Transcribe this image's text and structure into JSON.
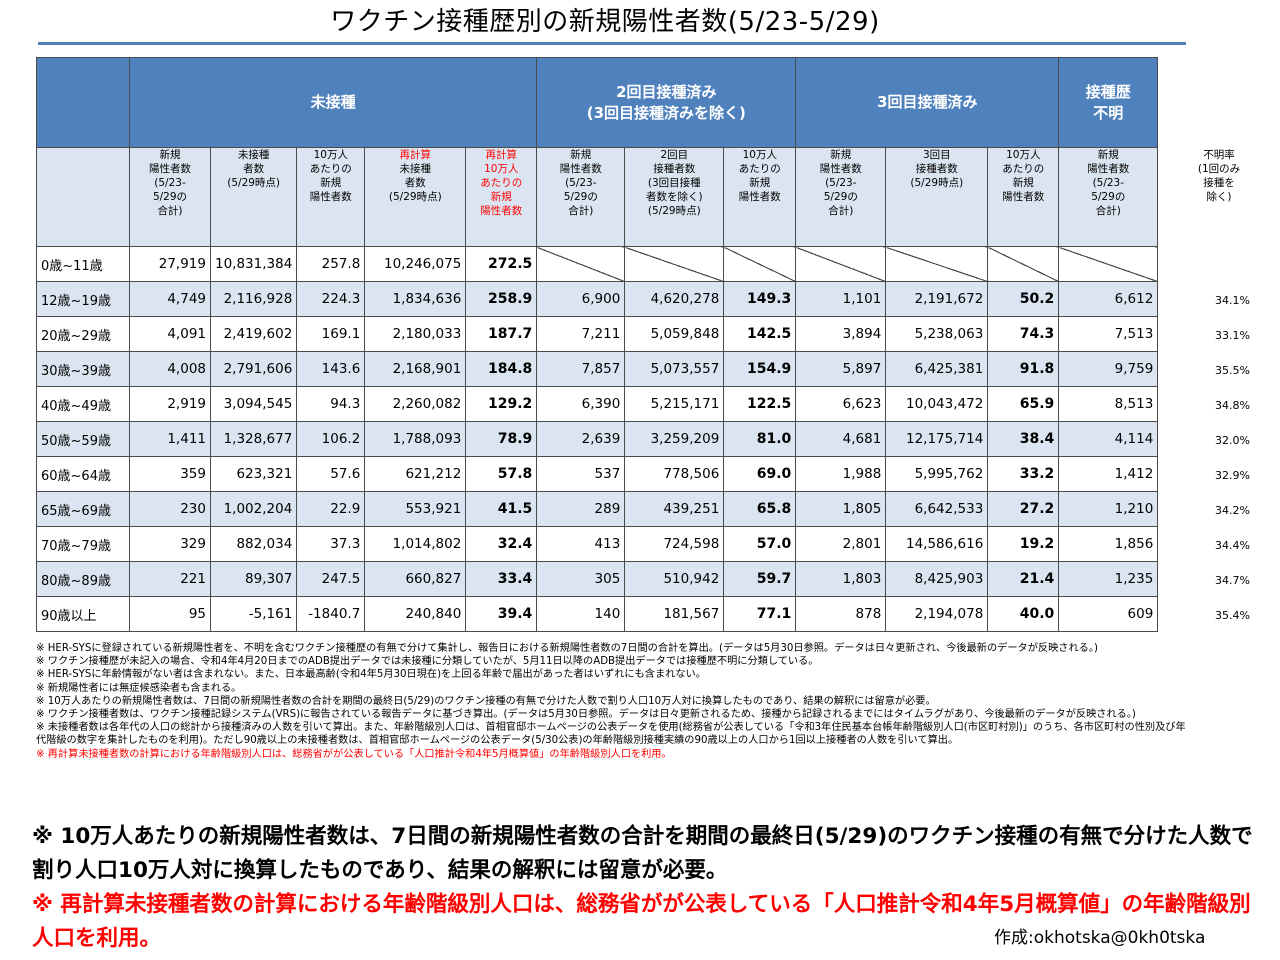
{
  "title": "ワクチン接種歴別の新規陽性者数(5/23-5/29)",
  "groups": {
    "unvaccinated": "未接種",
    "dose2_line1": "2回目接種済み",
    "dose2_line2": "(3回目接種済みを除く)",
    "dose3": "3回目接種済み",
    "unknown_line1": "接種歴",
    "unknown_line2": "不明"
  },
  "columns": {
    "u_cases": [
      "新規",
      "陽性者数",
      "(5/23-",
      "5/29の",
      "合計)"
    ],
    "u_pop": [
      "未接種",
      "者数",
      "(5/29時点)"
    ],
    "u_rate": [
      "10万人",
      "あたりの",
      "新規",
      "陽性者数"
    ],
    "u_recalc_pop_red": "再計算",
    "u_recalc_pop": [
      "未接種",
      "者数",
      "(5/29時点)"
    ],
    "u_recalc_rate_red": "再計算",
    "u_recalc_rate": [
      "10万人",
      "あたりの",
      "新規",
      "陽性者数"
    ],
    "d2_cases": [
      "新規",
      "陽性者数",
      "(5/23-",
      "5/29の",
      "合計)"
    ],
    "d2_pop": [
      "2回目",
      "接種者数",
      "(3回目接種",
      "者数を除く)",
      "(5/29時点)"
    ],
    "d2_rate": [
      "10万人",
      "あたりの",
      "新規",
      "陽性者数"
    ],
    "d3_cases": [
      "新規",
      "陽性者数",
      "(5/23-",
      "5/29の",
      "合計)"
    ],
    "d3_pop": [
      "3回目",
      "接種者数",
      "(5/29時点)"
    ],
    "d3_rate": [
      "10万人",
      "あたりの",
      "新規",
      "陽性者数"
    ],
    "unk_cases": [
      "新規",
      "陽性者数",
      "(5/23-",
      "5/29の",
      "合計)"
    ]
  },
  "unknown_rate_header": [
    "不明率",
    "(1回のみ",
    "接種を",
    "除く)"
  ],
  "rows": [
    {
      "age": "0歳~11歳",
      "u_cases": "27,919",
      "u_pop": "10,831,384",
      "u_rate": "257.8",
      "u_rpop": "10,246,075",
      "u_rrate": "272.5",
      "d2_cases": "",
      "d2_pop": "",
      "d2_rate": "",
      "d3_cases": "",
      "d3_pop": "",
      "d3_rate": "",
      "unk": "",
      "unk_rate": ""
    },
    {
      "age": "12歳~19歳",
      "u_cases": "4,749",
      "u_pop": "2,116,928",
      "u_rate": "224.3",
      "u_rpop": "1,834,636",
      "u_rrate": "258.9",
      "d2_cases": "6,900",
      "d2_pop": "4,620,278",
      "d2_rate": "149.3",
      "d3_cases": "1,101",
      "d3_pop": "2,191,672",
      "d3_rate": "50.2",
      "unk": "6,612",
      "unk_rate": "34.1%"
    },
    {
      "age": "20歳~29歳",
      "u_cases": "4,091",
      "u_pop": "2,419,602",
      "u_rate": "169.1",
      "u_rpop": "2,180,033",
      "u_rrate": "187.7",
      "d2_cases": "7,211",
      "d2_pop": "5,059,848",
      "d2_rate": "142.5",
      "d3_cases": "3,894",
      "d3_pop": "5,238,063",
      "d3_rate": "74.3",
      "unk": "7,513",
      "unk_rate": "33.1%"
    },
    {
      "age": "30歳~39歳",
      "u_cases": "4,008",
      "u_pop": "2,791,606",
      "u_rate": "143.6",
      "u_rpop": "2,168,901",
      "u_rrate": "184.8",
      "d2_cases": "7,857",
      "d2_pop": "5,073,557",
      "d2_rate": "154.9",
      "d3_cases": "5,897",
      "d3_pop": "6,425,381",
      "d3_rate": "91.8",
      "unk": "9,759",
      "unk_rate": "35.5%"
    },
    {
      "age": "40歳~49歳",
      "u_cases": "2,919",
      "u_pop": "3,094,545",
      "u_rate": "94.3",
      "u_rpop": "2,260,082",
      "u_rrate": "129.2",
      "d2_cases": "6,390",
      "d2_pop": "5,215,171",
      "d2_rate": "122.5",
      "d3_cases": "6,623",
      "d3_pop": "10,043,472",
      "d3_rate": "65.9",
      "unk": "8,513",
      "unk_rate": "34.8%"
    },
    {
      "age": "50歳~59歳",
      "u_cases": "1,411",
      "u_pop": "1,328,677",
      "u_rate": "106.2",
      "u_rpop": "1,788,093",
      "u_rrate": "78.9",
      "d2_cases": "2,639",
      "d2_pop": "3,259,209",
      "d2_rate": "81.0",
      "d3_cases": "4,681",
      "d3_pop": "12,175,714",
      "d3_rate": "38.4",
      "unk": "4,114",
      "unk_rate": "32.0%"
    },
    {
      "age": "60歳~64歳",
      "u_cases": "359",
      "u_pop": "623,321",
      "u_rate": "57.6",
      "u_rpop": "621,212",
      "u_rrate": "57.8",
      "d2_cases": "537",
      "d2_pop": "778,506",
      "d2_rate": "69.0",
      "d3_cases": "1,988",
      "d3_pop": "5,995,762",
      "d3_rate": "33.2",
      "unk": "1,412",
      "unk_rate": "32.9%"
    },
    {
      "age": "65歳~69歳",
      "u_cases": "230",
      "u_pop": "1,002,204",
      "u_rate": "22.9",
      "u_rpop": "553,921",
      "u_rrate": "41.5",
      "d2_cases": "289",
      "d2_pop": "439,251",
      "d2_rate": "65.8",
      "d3_cases": "1,805",
      "d3_pop": "6,642,533",
      "d3_rate": "27.2",
      "unk": "1,210",
      "unk_rate": "34.2%"
    },
    {
      "age": "70歳~79歳",
      "u_cases": "329",
      "u_pop": "882,034",
      "u_rate": "37.3",
      "u_rpop": "1,014,802",
      "u_rrate": "32.4",
      "d2_cases": "413",
      "d2_pop": "724,598",
      "d2_rate": "57.0",
      "d3_cases": "2,801",
      "d3_pop": "14,586,616",
      "d3_rate": "19.2",
      "unk": "1,856",
      "unk_rate": "34.4%"
    },
    {
      "age": "80歳~89歳",
      "u_cases": "221",
      "u_pop": "89,307",
      "u_rate": "247.5",
      "u_rpop": "660,827",
      "u_rrate": "33.4",
      "d2_cases": "305",
      "d2_pop": "510,942",
      "d2_rate": "59.7",
      "d3_cases": "1,803",
      "d3_pop": "8,425,903",
      "d3_rate": "21.4",
      "unk": "1,235",
      "unk_rate": "34.7%"
    },
    {
      "age": "90歳以上",
      "u_cases": "95",
      "u_pop": "-5,161",
      "u_rate": "-1840.7",
      "u_rpop": "240,840",
      "u_rrate": "39.4",
      "d2_cases": "140",
      "d2_pop": "181,567",
      "d2_rate": "77.1",
      "d3_cases": "878",
      "d3_pop": "2,194,078",
      "d3_rate": "40.0",
      "unk": "609",
      "unk_rate": "35.4%"
    }
  ],
  "notes": [
    "※ HER-SYSに登録されている新規陽性者を、不明を含むワクチン接種歴の有無で分けて集計し、報告日における新規陽性者数の7日間の合計を算出。(データは5月30日参照。データは日々更新され、今後最新のデータが反映される。)",
    "※ ワクチン接種歴が未記入の場合、令和4年4月20日までのADB提出データでは未接種に分類していたが、5月11日以降のADB提出データでは接種歴不明に分類している。",
    "※ HER-SYSに年齢情報がない者は含まれない。また、日本最高齢(令和4年5月30日現在)を上回る年齢で届出があった者はいずれにも含まれない。",
    "※ 新規陽性者には無症候感染者も含まれる。",
    "※ 10万人あたりの新規陽性者数は、7日間の新規陽性者数の合計を期間の最終日(5/29)のワクチン接種の有無で分けた人数で割り人口10万人対に換算したものであり、結果の解釈には留意が必要。",
    "※ ワクチン接種者数は、ワクチン接種記録システム(VRS)に報告されている報告データに基づき算出。(データは5月30日参照。データは日々更新されるため、接種から記録されるまでにはタイムラグがあり、今後最新のデータが反映される。)",
    "※ 未接種者数は各年代の人口の総計から接種済みの人数を引いて算出。また、年齢階級別人口は、首相官邸ホームページの公表データを使用(総務省が公表している「令和3年住民基本台帳年齢階級別人口(市区町村別)」のうち、各市区町村の性別及び年代階級の数字を集計したものを利用)。ただし90歳以上の未接種者数は、首相官邸ホームページの公表データ(5/30公表)の年齢階級別接種実績の90歳以上の人口から1回以上接種者の人数を引いて算出。"
  ],
  "note_red": "※ 再計算未接種者数の計算における年齢階級別人口は、総務省がが公表している「人口推計令和4年5月概算値」の年齢階級別人口を利用。",
  "big_note_1": "※ 10万人あたりの新規陽性者数は、7日間の新規陽性者数の合計を期間の最終日(5/29)のワクチン接種の有無で分けた人数で割り人口10万人対に換算したものであり、結果の解釈には留意が必要。",
  "big_note_2": "※ 再計算未接種者数の計算における年齢階級別人口は、総務省がが公表している「人口推計令和4年5月概算値」の年齢階級別人口を利用。",
  "credit": "作成:okhotska@0kh0tska",
  "colors": {
    "header_blue": "#4f81bd",
    "band_light": "#dbe5f1",
    "note_red": "#ff0000"
  }
}
